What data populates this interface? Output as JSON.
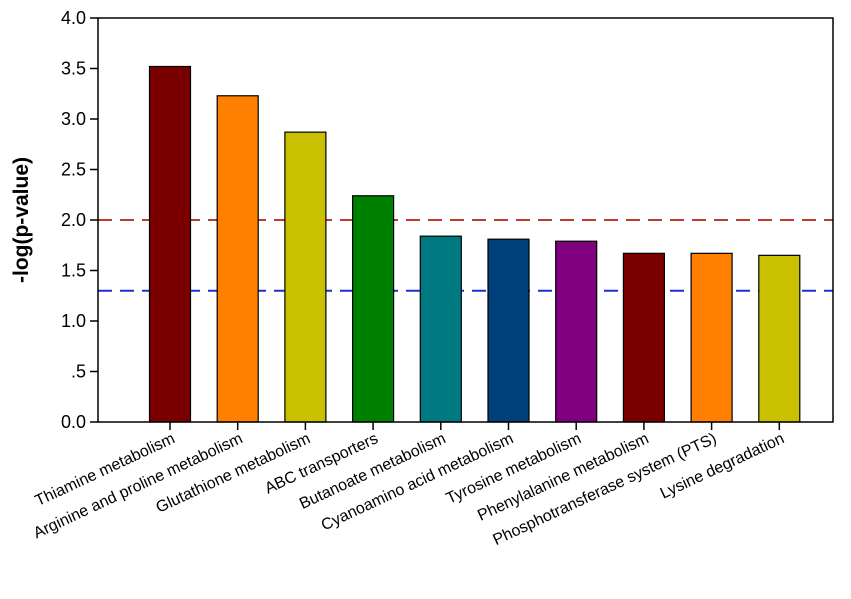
{
  "chart_data": {
    "type": "bar",
    "title": "",
    "xlabel": "",
    "ylabel": "-log(p-value)",
    "ylim": [
      0,
      4.0
    ],
    "yticks": [
      {
        "value": 0.0,
        "label": "0.0"
      },
      {
        "value": 0.5,
        "label": ".5"
      },
      {
        "value": 1.0,
        "label": "1.0"
      },
      {
        "value": 1.5,
        "label": "1.5"
      },
      {
        "value": 2.0,
        "label": "2.0"
      },
      {
        "value": 2.5,
        "label": "2.5"
      },
      {
        "value": 3.0,
        "label": "3.0"
      },
      {
        "value": 3.5,
        "label": "3.5"
      },
      {
        "value": 4.0,
        "label": "4.0"
      }
    ],
    "categories": [
      "Thiamine metabolism",
      "Arginine and proline metabolism",
      "Glutathione metabolism",
      "ABC transporters",
      "Butanoate metabolism",
      "Cyanoamino acid metabolism",
      "Tyrosine metabolism",
      "Phenylalanine metabolism",
      "Phosphotransferase system (PTS)",
      "Lysine degradation"
    ],
    "values": [
      3.52,
      3.23,
      2.87,
      2.24,
      1.84,
      1.81,
      1.79,
      1.67,
      1.67,
      1.65
    ],
    "colors": [
      "#7a0000",
      "#ff8000",
      "#c8c000",
      "#008000",
      "#007a80",
      "#00407a",
      "#800080",
      "#7a0000",
      "#ff8000",
      "#c8c000"
    ],
    "reference_lines": [
      {
        "value": 2.0,
        "color": "#c0392b",
        "style": "dashed"
      },
      {
        "value": 1.3,
        "color": "#1f2fd6",
        "style": "dashed"
      }
    ],
    "grid": false,
    "legend": "none"
  }
}
